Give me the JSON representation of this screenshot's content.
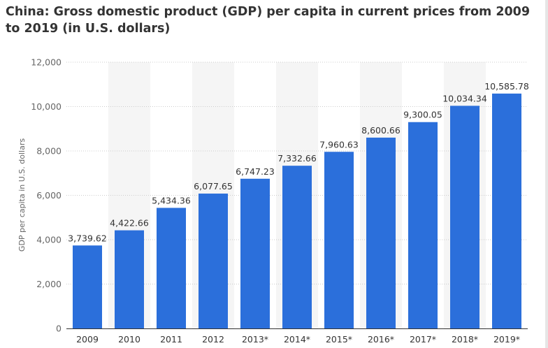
{
  "chart_data": {
    "type": "bar",
    "title": "China: Gross domestic product (GDP) per capita in current prices from 2009 to 2019 (in U.S. dollars)",
    "xlabel": "",
    "ylabel": "GDP per capita in U.S. dollars",
    "categories": [
      "2009",
      "2010",
      "2011",
      "2012",
      "2013*",
      "2014*",
      "2015*",
      "2016*",
      "2017*",
      "2018*",
      "2019*"
    ],
    "values": [
      3739.62,
      4422.66,
      5434.36,
      6077.65,
      6747.23,
      7332.66,
      7960.63,
      8600.66,
      9300.05,
      10034.34,
      10585.78
    ],
    "value_labels": [
      "3,739.62",
      "4,422.66",
      "5,434.36",
      "6,077.65",
      "6,747.23",
      "7,332.66",
      "7,960.63",
      "8,600.66",
      "9,300.05",
      "10,034.34",
      "10,585.78"
    ],
    "ylim": [
      0,
      12000
    ],
    "yticks": [
      0,
      2000,
      4000,
      6000,
      8000,
      10000,
      12000
    ],
    "ytick_labels": [
      "0",
      "2,000",
      "4,000",
      "6,000",
      "8,000",
      "10,000",
      "12,000"
    ],
    "grid": true,
    "legend": "none",
    "bar_color": "#2b6fdb",
    "band_color": "#f5f5f5"
  }
}
